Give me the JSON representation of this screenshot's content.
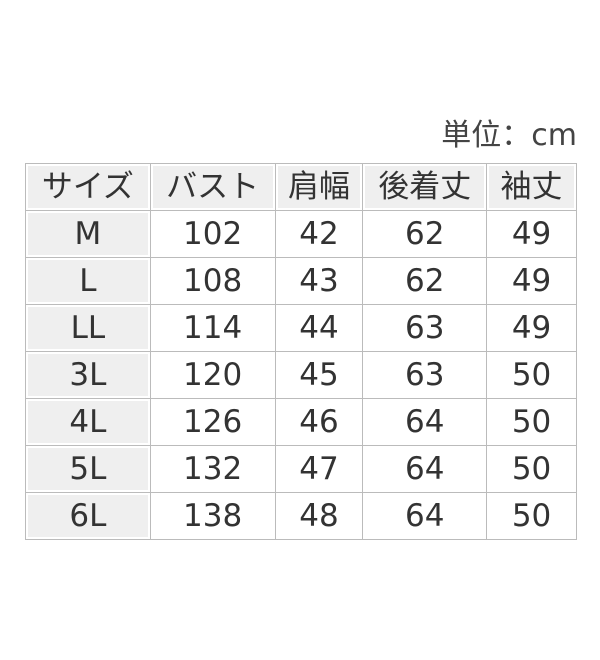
{
  "unit": "単位：cm",
  "table": {
    "header": [
      "サイズ",
      "バスト",
      "肩幅",
      "後着丈",
      "袖丈"
    ],
    "rows": [
      [
        "M",
        102,
        42,
        62,
        49
      ],
      [
        "L",
        108,
        43,
        62,
        49
      ],
      [
        "LL",
        114,
        44,
        63,
        49
      ],
      [
        "3L",
        120,
        45,
        63,
        50
      ],
      [
        "4L",
        126,
        46,
        64,
        50
      ],
      [
        "5L",
        132,
        47,
        64,
        50
      ],
      [
        "6L",
        138,
        48,
        64,
        50
      ]
    ]
  }
}
